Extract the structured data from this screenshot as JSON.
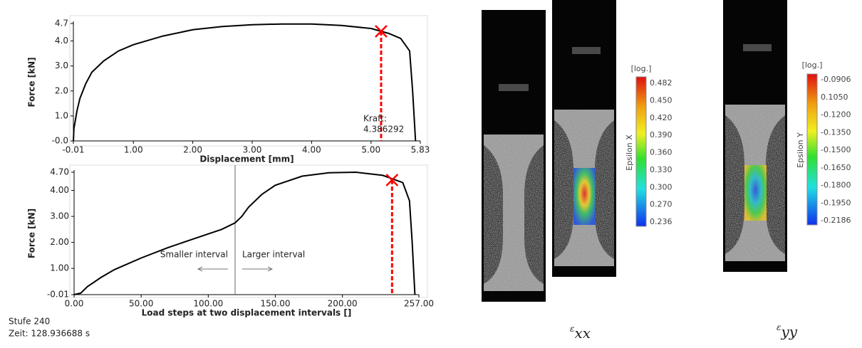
{
  "chart_data": [
    {
      "type": "line",
      "ylabel": "Force [kN]",
      "xlabel": "Displacement [mm]",
      "x": [
        -0.01,
        0.0,
        0.05,
        0.1,
        0.2,
        0.3,
        0.5,
        0.75,
        1.0,
        1.5,
        2.0,
        2.5,
        3.0,
        3.5,
        4.0,
        4.5,
        5.0,
        5.3,
        5.5,
        5.65,
        5.7,
        5.75
      ],
      "values": [
        0,
        0.5,
        1.2,
        1.7,
        2.3,
        2.75,
        3.2,
        3.6,
        3.85,
        4.2,
        4.45,
        4.58,
        4.65,
        4.68,
        4.68,
        4.62,
        4.5,
        4.3,
        4.1,
        3.6,
        2.0,
        0
      ],
      "color": "#000000",
      "xlim": [
        -0.01,
        5.83
      ],
      "ylim": [
        0,
        4.7
      ],
      "xticks": [
        -0.01,
        {
          "value": 1,
          "label": "1.00"
        },
        {
          "value": 2,
          "label": "2.00"
        },
        {
          "value": 3,
          "label": "3.00"
        },
        {
          "value": 4,
          "label": "4.00"
        },
        {
          "value": 5,
          "label": "5.00"
        },
        5.83
      ],
      "yticks": [
        {
          "value": 0,
          "label": "-0.0"
        },
        {
          "value": 1,
          "label": "1.0"
        },
        {
          "value": 2,
          "label": "2.0"
        },
        {
          "value": 3,
          "label": "3.0"
        },
        {
          "value": 4,
          "label": "4.0"
        },
        4.7
      ],
      "marker": {
        "x": 5.17,
        "y": 4.386292,
        "color": "#ff0000"
      },
      "annotations": [
        "Kraft:",
        "4.386292"
      ]
    },
    {
      "type": "line",
      "ylabel": "Force [kN]",
      "xlabel": "Load steps at two displacement intervals []",
      "x": [
        0,
        5,
        10,
        20,
        30,
        50,
        70,
        90,
        110,
        120,
        125,
        130,
        140,
        150,
        170,
        190,
        210,
        230,
        245,
        250,
        252,
        254
      ],
      "values": [
        -0.01,
        0.05,
        0.3,
        0.65,
        0.95,
        1.4,
        1.8,
        2.15,
        2.5,
        2.75,
        3.0,
        3.35,
        3.85,
        4.2,
        4.55,
        4.68,
        4.7,
        4.58,
        4.3,
        3.6,
        2.0,
        -0.01
      ],
      "color": "#000000",
      "xlim": [
        0,
        257
      ],
      "ylim": [
        -0.01,
        4.7
      ],
      "xticks": [
        {
          "value": 0,
          "label": "0.00"
        },
        {
          "value": 50,
          "label": "50.00"
        },
        {
          "value": 100,
          "label": "100.00"
        },
        {
          "value": 150,
          "label": "150.00"
        },
        {
          "value": 200,
          "label": "200.00"
        },
        {
          "value": 257,
          "label": "257.00"
        }
      ],
      "yticks": [
        -0.01,
        {
          "value": 1,
          "label": "1.00"
        },
        {
          "value": 2,
          "label": "2.00"
        },
        {
          "value": 3,
          "label": "3.00"
        },
        {
          "value": 4,
          "label": "4.00"
        },
        {
          "value": 4.7,
          "label": "4.70"
        }
      ],
      "marker": {
        "x": 237,
        "y": 4.4,
        "color": "#ff0000"
      },
      "divider_x": 120,
      "annotations": [
        "Smaller interval",
        "Larger interval"
      ]
    }
  ],
  "status": {
    "step": "Stufe 240",
    "time": "Zeit: 128.936688 s"
  },
  "colorbars": [
    {
      "unit": "[log.]",
      "label": "Epsilon X",
      "ticks": [
        "0.482",
        "0.450",
        "0.420",
        "0.390",
        "0.360",
        "0.330",
        "0.300",
        "0.270",
        "0.236"
      ]
    },
    {
      "unit": "[log.]",
      "label": "Epsilon Y",
      "ticks": [
        "-0.0906",
        "0.1050",
        "-0.1200",
        "-0.1350",
        "-0.1500",
        "-0.1650",
        "-0.1800",
        "-0.1950",
        "-0.2186"
      ]
    }
  ],
  "captions": [
    {
      "symbol": "ε",
      "sub": "xx"
    },
    {
      "symbol": "ε",
      "sub": "yy"
    }
  ]
}
